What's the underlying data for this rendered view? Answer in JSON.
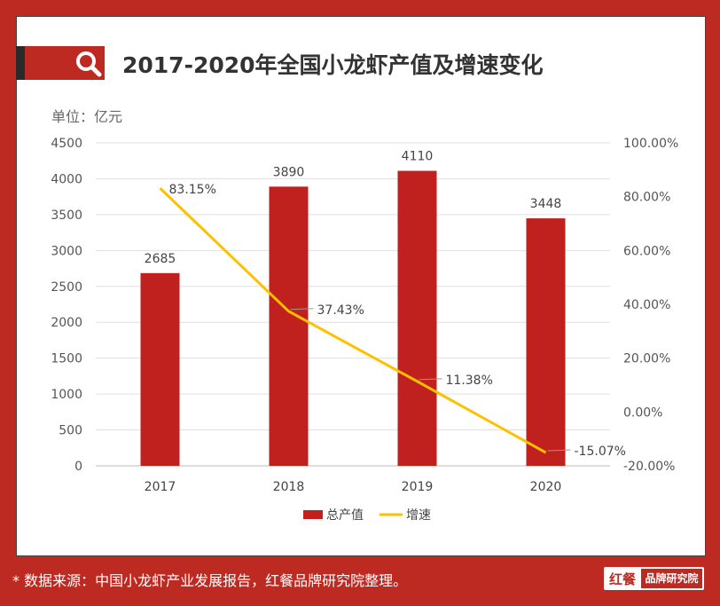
{
  "title": "2017-2020年全国小龙虾产值及增速变化",
  "unit": "单位：亿元",
  "source": "* 数据来源：中国小龙虾产业发展报告，红餐品牌研究院整理。",
  "logo": {
    "left": "红餐",
    "right": "品牌研究院"
  },
  "colors": {
    "bar": "#c0201e",
    "line": "#ffc000",
    "brand": "#bd2a22"
  },
  "chart_data": {
    "type": "bar+line",
    "categories": [
      "2017",
      "2018",
      "2019",
      "2020"
    ],
    "series": [
      {
        "name": "总产值",
        "type": "bar",
        "axis": "left",
        "values": [
          2685,
          3890,
          4110,
          3448
        ],
        "labels": [
          "2685",
          "3890",
          "4110",
          "3448"
        ]
      },
      {
        "name": "增速",
        "type": "line",
        "axis": "right",
        "values": [
          83.15,
          37.43,
          11.38,
          -15.07
        ],
        "labels": [
          "83.15%",
          "37.43%",
          "11.38%",
          "-15.07%"
        ]
      }
    ],
    "left_axis": {
      "min": 0,
      "max": 4500,
      "ticks": [
        "0",
        "500",
        "1000",
        "1500",
        "2000",
        "2500",
        "3000",
        "3500",
        "4000",
        "4500"
      ]
    },
    "right_axis": {
      "min": -20,
      "max": 100,
      "ticks": [
        "-20.00%",
        "0.00%",
        "20.00%",
        "40.00%",
        "60.00%",
        "80.00%",
        "100.00%"
      ]
    },
    "grid": true,
    "legend": "bottom"
  }
}
